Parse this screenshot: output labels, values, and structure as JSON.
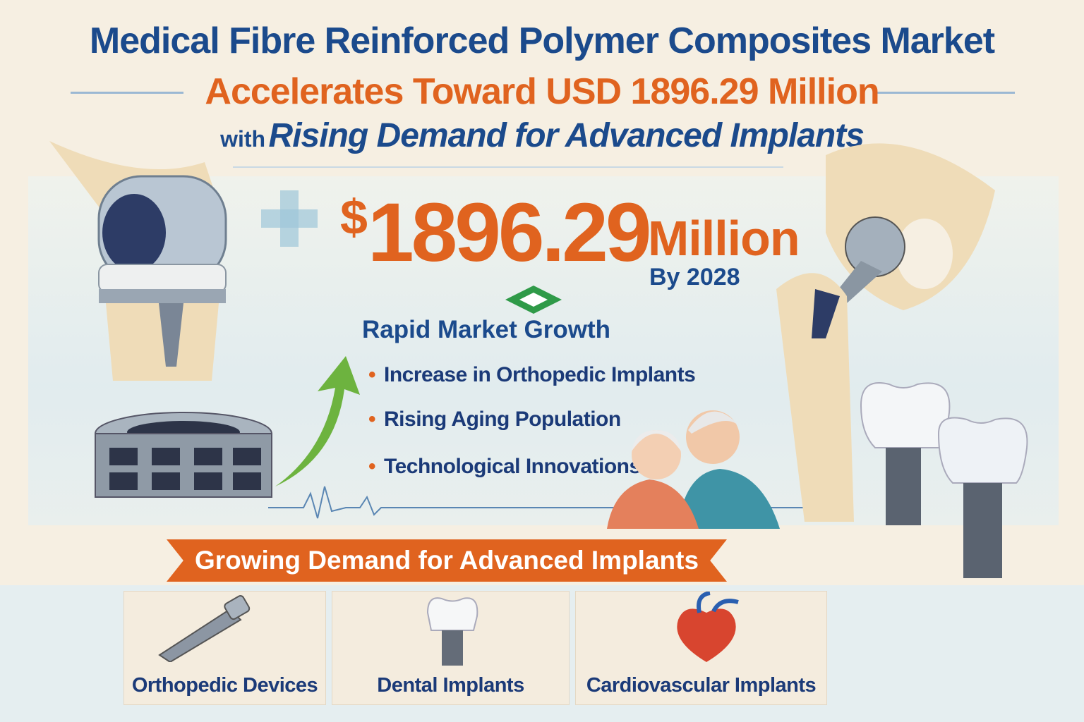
{
  "title": {
    "line1": "Medical Fibre Reinforced Polymer Composites Market",
    "line2": "Accelerates Toward USD 1896.29 Million",
    "line3_prefix": "with",
    "line3_main": "Rising Demand for Advanced Implants"
  },
  "highlight": {
    "currency": "$",
    "value": "1896.29",
    "unit": "Million",
    "year_label": "By 2028"
  },
  "growth": {
    "heading": "Rapid Market Growth",
    "bullets": [
      "Increase in Orthopedic Implants",
      "Rising Aging Population",
      "Technological Innovations"
    ]
  },
  "banner": "Growing Demand for Advanced Implants",
  "categories": [
    {
      "label": "Orthopedic Devices",
      "icon": "bone-screw-icon"
    },
    {
      "label": "Dental Implants",
      "icon": "dental-implant-icon"
    },
    {
      "label": "Cardiovascular Implants",
      "icon": "heart-icon"
    }
  ],
  "colors": {
    "blue": "#1b4a8c",
    "orange": "#e0631f",
    "green": "#6db33f",
    "background": "#f6efe2"
  }
}
